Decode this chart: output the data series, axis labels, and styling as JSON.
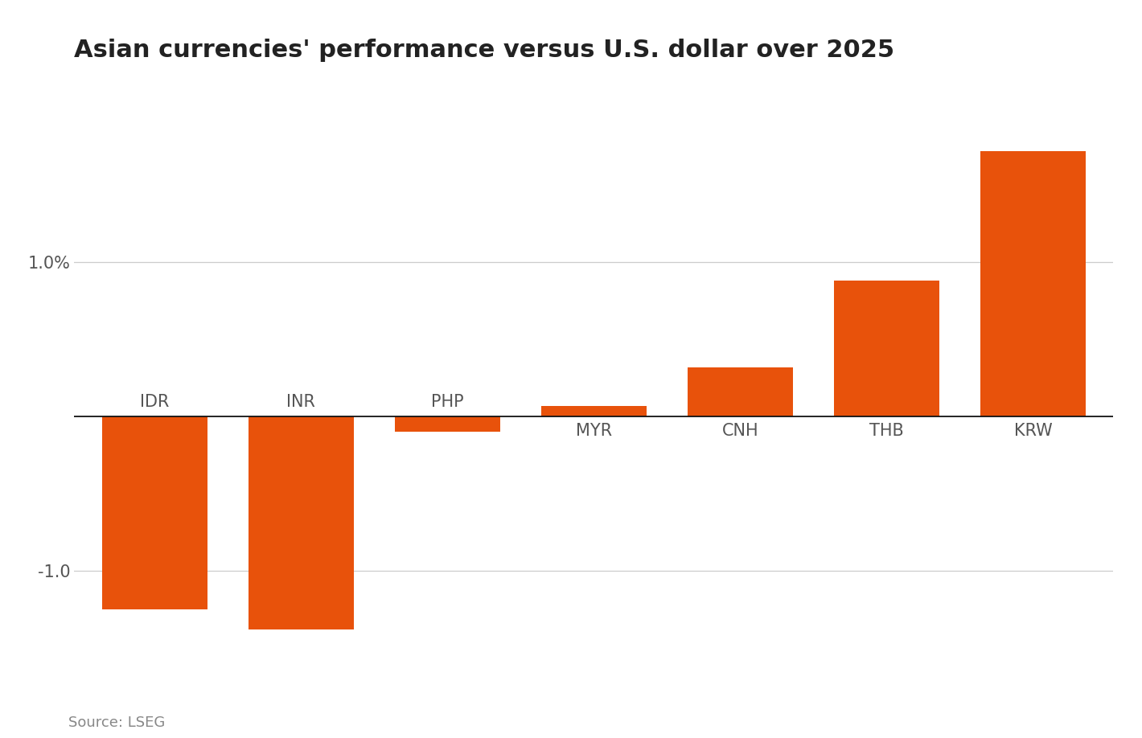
{
  "title": "Asian currencies' performance versus U.S. dollar over 2025",
  "categories": [
    "IDR",
    "INR",
    "PHP",
    "MYR",
    "CNH",
    "THB",
    "KRW"
  ],
  "values": [
    -1.25,
    -1.38,
    -0.1,
    0.07,
    0.32,
    0.88,
    1.72
  ],
  "bar_color": "#e8520b",
  "background_color": "#ffffff",
  "title_fontsize": 22,
  "label_fontsize": 15,
  "tick_fontsize": 15,
  "source_text": "Source: LSEG",
  "source_fontsize": 13,
  "ylim": [
    -1.75,
    2.15
  ],
  "ytick_positions": [
    -1.0,
    0.0,
    1.0
  ],
  "grid_color": "#cccccc",
  "axis_color": "#333333",
  "label_color": "#555555",
  "title_color": "#222222"
}
